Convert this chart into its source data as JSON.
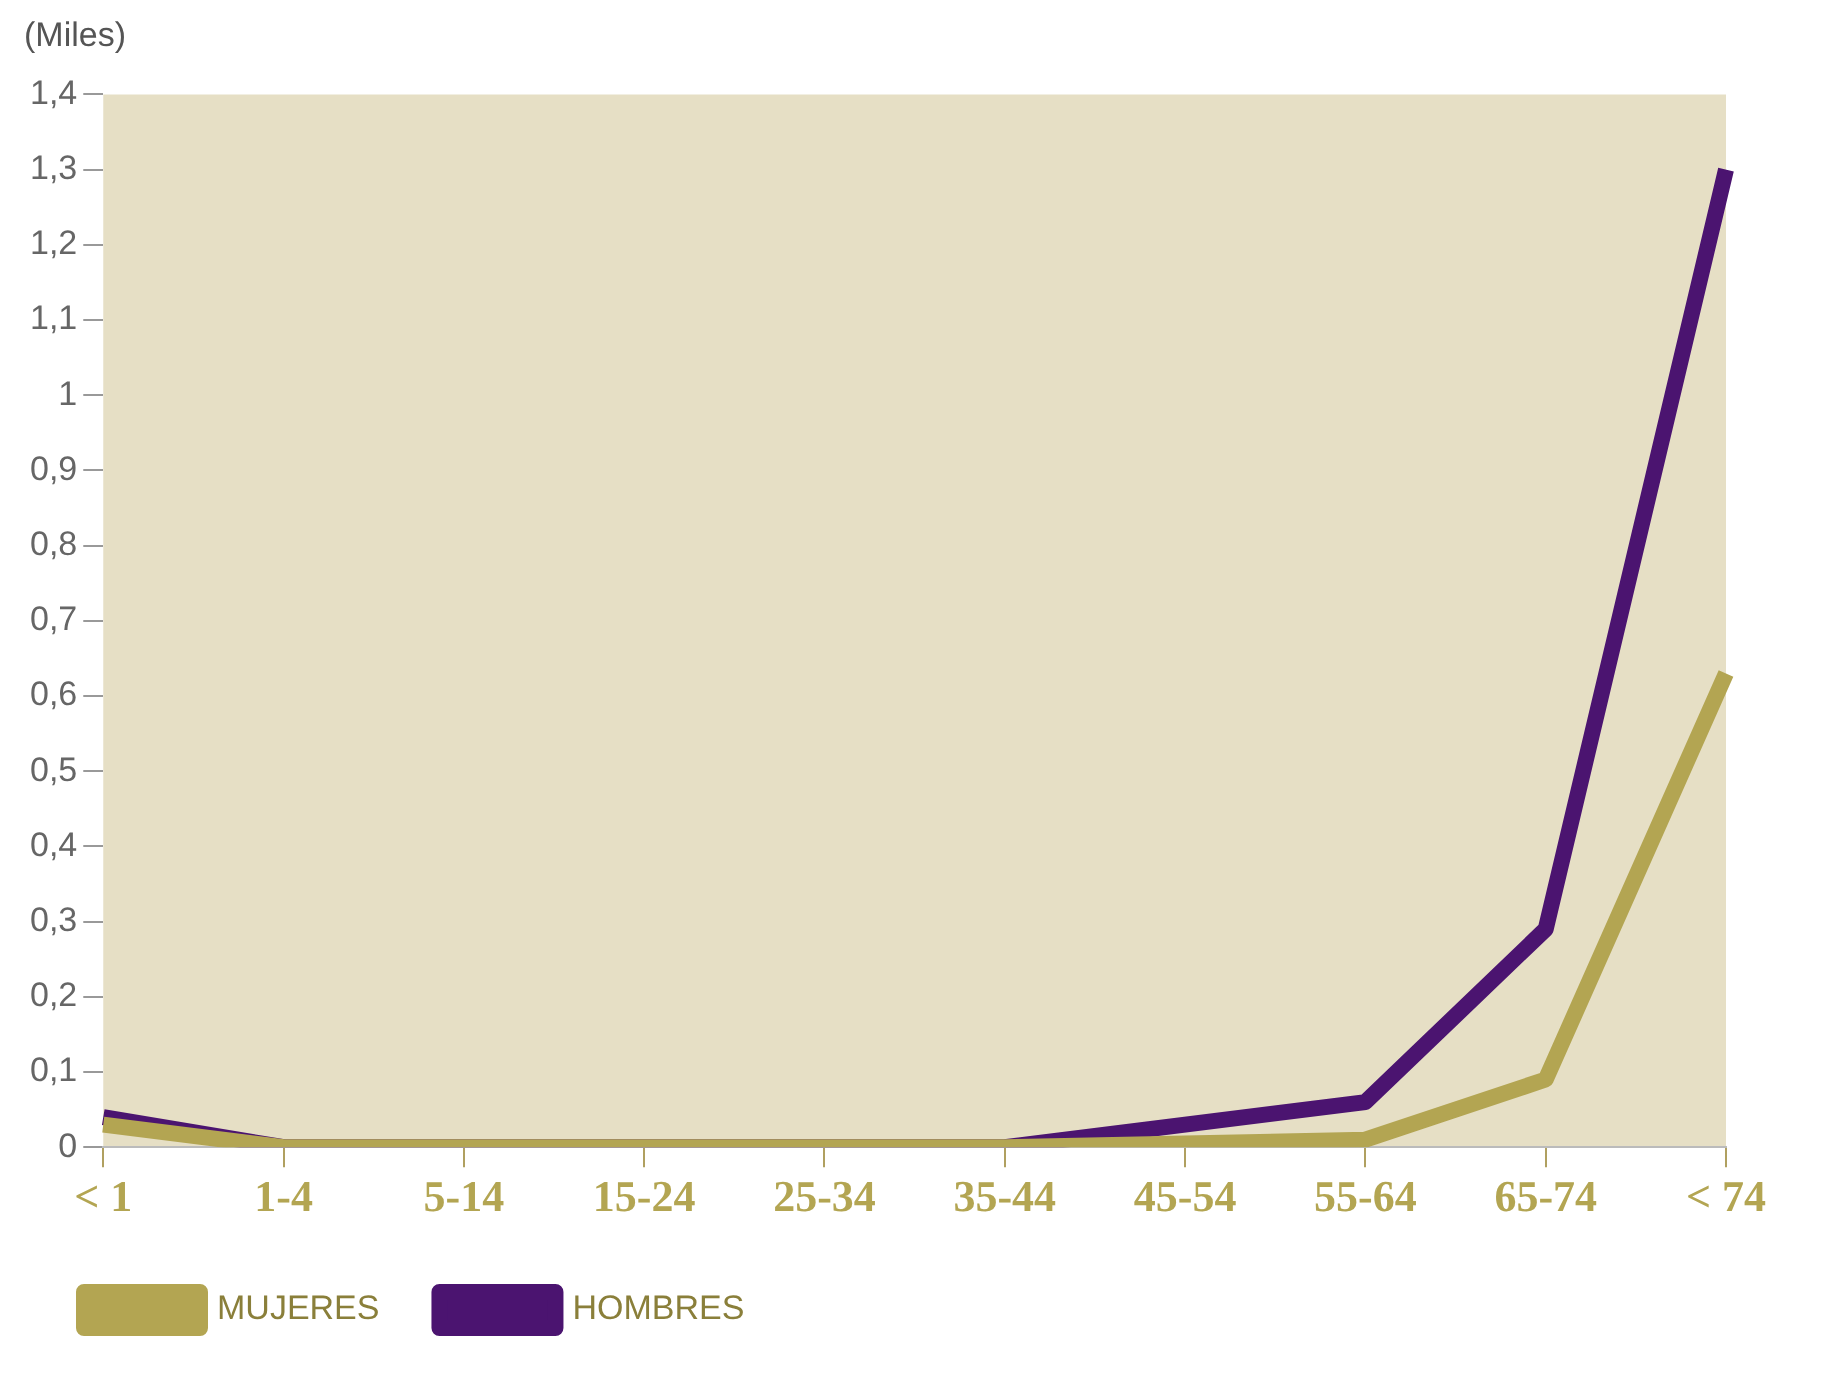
{
  "chart_data": {
    "type": "line",
    "ylabel": "(Miles)",
    "categories": [
      "< 1",
      "1-4",
      "5-14",
      "15-24",
      "25-34",
      "35-44",
      "45-54",
      "55-64",
      "65-74",
      "< 74"
    ],
    "series": [
      {
        "name": "MUJERES",
        "color": "#b3a552",
        "values": [
          0.03,
          0,
          0,
          0,
          0,
          0,
          0.005,
          0.01,
          0.09,
          0.63
        ]
      },
      {
        "name": "HOMBRES",
        "color": "#4b1470",
        "values": [
          0.04,
          0,
          0,
          0,
          0,
          0,
          0.03,
          0.06,
          0.29,
          1.3
        ]
      }
    ],
    "ylim": [
      0,
      1.4
    ],
    "yticks": [
      0,
      {
        "value": 0.1,
        "label": "0,1"
      },
      {
        "value": 0.2,
        "label": "0,2"
      },
      {
        "value": 0.3,
        "label": "0,3"
      },
      {
        "value": 0.4,
        "label": "0,4"
      },
      {
        "value": 0.5,
        "label": "0,5"
      },
      {
        "value": 0.6,
        "label": "0,6"
      },
      {
        "value": 0.7,
        "label": "0,7"
      },
      {
        "value": 0.8,
        "label": "0,8"
      },
      {
        "value": 0.9,
        "label": "0,9"
      },
      1,
      {
        "value": 1.1,
        "label": "1,1"
      },
      {
        "value": 1.2,
        "label": "1,2"
      },
      {
        "value": 1.3,
        "label": "1,3"
      },
      {
        "value": 1.4,
        "label": "1,4"
      }
    ],
    "grid": false,
    "legend": "bottom"
  }
}
